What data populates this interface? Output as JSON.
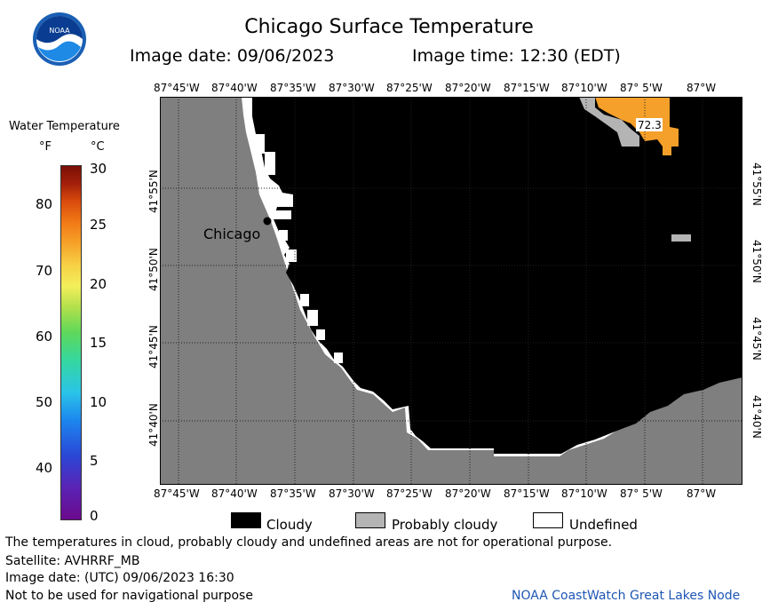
{
  "header": {
    "title": "Chicago Surface Temperature",
    "image_date": "Image date: 09/06/2023",
    "image_time": "Image time: 12:30 (EDT)"
  },
  "logo": {
    "text": "NOAA"
  },
  "colorbar": {
    "title": "Water Temperature",
    "unit_f": "°F",
    "unit_c": "°C",
    "ticks_f": [
      "80",
      "70",
      "60",
      "50",
      "40"
    ],
    "ticks_c": [
      "30",
      "25",
      "20",
      "15",
      "10",
      "5",
      "0"
    ]
  },
  "map": {
    "lon_labels": [
      "87°45'W",
      "87°40'W",
      "87°35'W",
      "87°30'W",
      "87°25'W",
      "87°20'W",
      "87°15'W",
      "87°10'W",
      "87° 5'W",
      "87°W"
    ],
    "lat_labels": [
      "41°55'N",
      "41°50'N",
      "41°45'N",
      "41°40'N"
    ],
    "city_label": "Chicago",
    "temp_label": "72.3",
    "colors": {
      "land": "#7f7f7f",
      "cloudy": "#000000",
      "probably_cloudy": "#b4b4b4",
      "undefined": "#ffffff",
      "warm_water": "#f5a02a"
    }
  },
  "legend": {
    "cloudy": "Cloudy",
    "probably_cloudy": "Probably cloudy",
    "undefined": "Undefined"
  },
  "footer": {
    "disclaimer": "The temperatures in cloud, probably cloudy and undefined areas are not for operational purpose.",
    "satellite": "Satellite: AVHRRF_MB",
    "utc_date": "Image date: (UTC) 09/06/2023  16:30",
    "nav_warning": "Not to be used for navigational purpose",
    "node": "NOAA CoastWatch Great Lakes Node"
  }
}
